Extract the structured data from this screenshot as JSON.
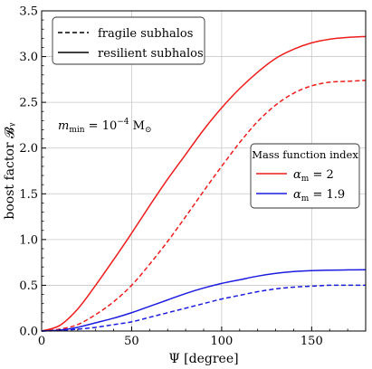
{
  "chart_data": {
    "type": "line",
    "xlabel": "Ψ [degree]",
    "ylabel": "boost factor 𝓑ᵧ",
    "xlim": [
      0,
      180
    ],
    "ylim": [
      0,
      3.5
    ],
    "x_ticks": [
      0,
      50,
      100,
      150
    ],
    "y_ticks": [
      0.0,
      0.5,
      1.0,
      1.5,
      2.0,
      2.5,
      3.0,
      3.5
    ],
    "x_tick_labels": [
      "0",
      "50",
      "100",
      "150"
    ],
    "y_tick_labels": [
      "0.0",
      "0.5",
      "1.0",
      "1.5",
      "2.0",
      "2.5",
      "3.0",
      "3.5"
    ],
    "grid": true,
    "annotation": {
      "prefix": "m",
      "prefix_sub": "min",
      "mid": " = 10",
      "exp": "−4",
      "unit": " M",
      "unit_sub": "⊙"
    },
    "style_legend": {
      "placement": "top-left",
      "entries": [
        {
          "label": "fragile subhalos",
          "linestyle": "dashed"
        },
        {
          "label": "resilient subhalos",
          "linestyle": "solid"
        }
      ]
    },
    "color_legend": {
      "placement": "center-right",
      "title": "Mass function index",
      "entries": [
        {
          "symbol": "α",
          "sub": "m",
          "value": " = 2",
          "color": "#ee1c1c"
        },
        {
          "symbol": "α",
          "sub": "m",
          "value": " = 1.9",
          "color": "#1c1ce0"
        }
      ]
    },
    "series": [
      {
        "alpha": "2",
        "subhalos": "resilient",
        "color": "#ee1c1c",
        "linestyle": "solid",
        "x": [
          0,
          10,
          20,
          30,
          40,
          50,
          60,
          70,
          80,
          90,
          100,
          110,
          120,
          130,
          140,
          150,
          160,
          170,
          180
        ],
        "y": [
          0.0,
          0.06,
          0.24,
          0.5,
          0.78,
          1.07,
          1.37,
          1.66,
          1.93,
          2.2,
          2.44,
          2.65,
          2.83,
          2.98,
          3.08,
          3.15,
          3.19,
          3.21,
          3.22
        ]
      },
      {
        "alpha": "2",
        "subhalos": "fragile",
        "color": "#ee1c1c",
        "linestyle": "dashed",
        "x": [
          0,
          10,
          20,
          30,
          40,
          50,
          60,
          70,
          80,
          90,
          100,
          110,
          120,
          130,
          140,
          150,
          160,
          170,
          180
        ],
        "y": [
          0.0,
          0.02,
          0.07,
          0.18,
          0.32,
          0.5,
          0.73,
          0.98,
          1.25,
          1.53,
          1.8,
          2.06,
          2.29,
          2.47,
          2.6,
          2.68,
          2.72,
          2.73,
          2.74
        ]
      },
      {
        "alpha": "1.9",
        "subhalos": "resilient",
        "color": "#1c1ce0",
        "linestyle": "solid",
        "x": [
          0,
          10,
          20,
          30,
          40,
          50,
          60,
          70,
          80,
          90,
          100,
          110,
          120,
          130,
          140,
          150,
          160,
          170,
          180
        ],
        "y": [
          0.0,
          0.01,
          0.04,
          0.09,
          0.14,
          0.2,
          0.27,
          0.34,
          0.41,
          0.47,
          0.52,
          0.56,
          0.6,
          0.63,
          0.65,
          0.66,
          0.665,
          0.668,
          0.67
        ]
      },
      {
        "alpha": "1.9",
        "subhalos": "fragile",
        "color": "#1c1ce0",
        "linestyle": "dashed",
        "x": [
          0,
          10,
          20,
          30,
          40,
          50,
          60,
          70,
          80,
          90,
          100,
          110,
          120,
          130,
          140,
          150,
          160,
          170,
          180
        ],
        "y": [
          0.0,
          0.005,
          0.02,
          0.04,
          0.07,
          0.1,
          0.15,
          0.2,
          0.25,
          0.3,
          0.35,
          0.39,
          0.43,
          0.46,
          0.48,
          0.49,
          0.5,
          0.5,
          0.5
        ]
      }
    ]
  }
}
